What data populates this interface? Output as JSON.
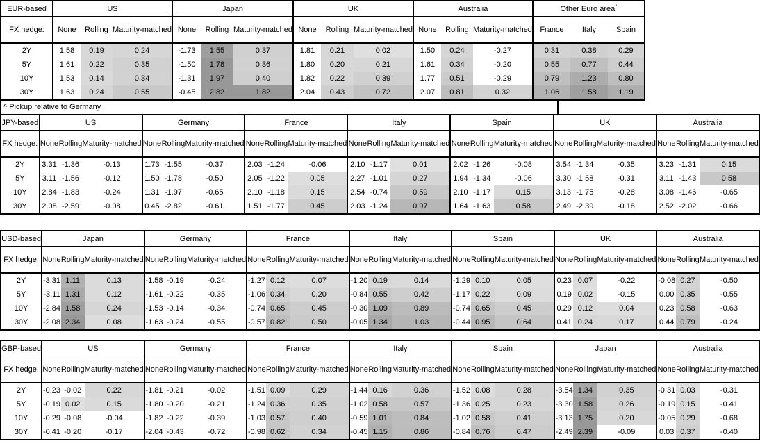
{
  "footnote": "^ Pickup relative to Germany",
  "fx_hedge_label": "FX hedge:",
  "row_labels": [
    "2Y",
    "5Y",
    "10Y",
    "30Y"
  ],
  "standard_subcols": [
    "None",
    "Rolling",
    "Maturity-matched"
  ],
  "colors": {
    "border": "#000000",
    "shade_lightest": "#dedede",
    "shade_darkest": "#989898",
    "background": "#ffffff"
  },
  "shading_rule": "positive values in hedged (Rolling / Maturity-matched) columns and in all Other-Euro-area pickup columns are shaded grey, darker with larger value; None columns and negative values are unshaded",
  "tables": [
    {
      "base_label": "EUR-based",
      "groups": [
        {
          "name": "US",
          "cols": [
            "None",
            "Rolling",
            "Maturity-matched"
          ],
          "shade_all": false,
          "rows": [
            [
              "1.58",
              "0.19",
              "0.24"
            ],
            [
              "1.61",
              "0.22",
              "0.35"
            ],
            [
              "1.53",
              "0.14",
              "0.34"
            ],
            [
              "1.63",
              "0.24",
              "0.55"
            ]
          ]
        },
        {
          "name": "Japan",
          "cols": [
            "None",
            "Rolling",
            "Maturity-matched"
          ],
          "shade_all": false,
          "rows": [
            [
              "-1.73",
              "1.55",
              "0.37"
            ],
            [
              "-1.50",
              "1.78",
              "0.36"
            ],
            [
              "-1.31",
              "1.97",
              "0.40"
            ],
            [
              "-0.45",
              "2.82",
              "1.82"
            ]
          ]
        },
        {
          "name": "UK",
          "cols": [
            "None",
            "Rolling",
            "Maturity-matched"
          ],
          "shade_all": false,
          "rows": [
            [
              "1.81",
              "0.21",
              "0.02"
            ],
            [
              "1.80",
              "0.20",
              "0.21"
            ],
            [
              "1.82",
              "0.22",
              "0.39"
            ],
            [
              "2.04",
              "0.43",
              "0.72"
            ]
          ]
        },
        {
          "name": "Australia",
          "cols": [
            "None",
            "Rolling",
            "Maturity-matched"
          ],
          "shade_all": false,
          "rows": [
            [
              "1.50",
              "0.24",
              "-0.27"
            ],
            [
              "1.61",
              "0.34",
              "-0.20"
            ],
            [
              "1.77",
              "0.51",
              "-0.29"
            ],
            [
              "2.07",
              "0.81",
              "0.32"
            ]
          ]
        },
        {
          "name": "Other Euro area",
          "sup": "^",
          "cols": [
            "France",
            "Italy",
            "Spain"
          ],
          "shade_all": true,
          "rows": [
            [
              "0.31",
              "0.38",
              "0.29"
            ],
            [
              "0.55",
              "0.77",
              "0.44"
            ],
            [
              "0.79",
              "1.23",
              "0.80"
            ],
            [
              "1.06",
              "1.58",
              "1.19"
            ]
          ]
        }
      ]
    },
    {
      "base_label": "JPY-based",
      "groups": [
        {
          "name": "US",
          "cols": [
            "None",
            "Rolling",
            "Maturity-matched"
          ],
          "shade_all": false,
          "rows": [
            [
              "3.31",
              "-1.36",
              "-0.13"
            ],
            [
              "3.11",
              "-1.56",
              "-0.12"
            ],
            [
              "2.84",
              "-1.83",
              "-0.24"
            ],
            [
              "2.08",
              "-2.59",
              "-0.08"
            ]
          ]
        },
        {
          "name": "Germany",
          "cols": [
            "None",
            "Rolling",
            "Maturity-matched"
          ],
          "shade_all": false,
          "rows": [
            [
              "1.73",
              "-1.55",
              "-0.37"
            ],
            [
              "1.50",
              "-1.78",
              "-0.50"
            ],
            [
              "1.31",
              "-1.97",
              "-0.65"
            ],
            [
              "0.45",
              "-2.82",
              "-0.61"
            ]
          ]
        },
        {
          "name": "France",
          "cols": [
            "None",
            "Rolling",
            "Maturity-matched"
          ],
          "shade_all": false,
          "rows": [
            [
              "2.03",
              "-1.24",
              "-0.06"
            ],
            [
              "2.05",
              "-1.22",
              "0.05"
            ],
            [
              "2.10",
              "-1.18",
              "0.15"
            ],
            [
              "1.51",
              "-1.77",
              "0.45"
            ]
          ]
        },
        {
          "name": "Italy",
          "cols": [
            "None",
            "Rolling",
            "Maturity-matched"
          ],
          "shade_all": false,
          "rows": [
            [
              "2.10",
              "-1.17",
              "0.01"
            ],
            [
              "2.27",
              "-1.01",
              "0.27"
            ],
            [
              "2.54",
              "-0.74",
              "0.59"
            ],
            [
              "2.03",
              "-1.24",
              "0.97"
            ]
          ]
        },
        {
          "name": "Spain",
          "cols": [
            "None",
            "Rolling",
            "Maturity-matched"
          ],
          "shade_all": false,
          "rows": [
            [
              "2.02",
              "-1.26",
              "-0.08"
            ],
            [
              "1.94",
              "-1.34",
              "-0.06"
            ],
            [
              "2.10",
              "-1.17",
              "0.15"
            ],
            [
              "1.64",
              "-1.63",
              "0.58"
            ]
          ]
        },
        {
          "name": "UK",
          "cols": [
            "None",
            "Rolling",
            "Maturity-matched"
          ],
          "shade_all": false,
          "rows": [
            [
              "3.54",
              "-1.34",
              "-0.35"
            ],
            [
              "3.30",
              "-1.58",
              "-0.31"
            ],
            [
              "3.13",
              "-1.75",
              "-0.28"
            ],
            [
              "2.49",
              "-2.39",
              "-0.18"
            ]
          ]
        },
        {
          "name": "Australia",
          "cols": [
            "None",
            "Rolling",
            "Maturity-matched"
          ],
          "shade_all": false,
          "rows": [
            [
              "3.23",
              "-1.31",
              "0.15"
            ],
            [
              "3.11",
              "-1.43",
              "0.58"
            ],
            [
              "3.08",
              "-1.46",
              "-0.65"
            ],
            [
              "2.52",
              "-2.02",
              "-0.66"
            ]
          ]
        }
      ]
    },
    {
      "base_label": "USD-based",
      "groups": [
        {
          "name": "Japan",
          "cols": [
            "None",
            "Rolling",
            "Maturity-matched"
          ],
          "shade_all": false,
          "rows": [
            [
              "-3.31",
              "1.11",
              "0.13"
            ],
            [
              "-3.11",
              "1.31",
              "0.12"
            ],
            [
              "-2.84",
              "1.58",
              "0.24"
            ],
            [
              "-2.08",
              "2.34",
              "0.08"
            ]
          ]
        },
        {
          "name": "Germany",
          "cols": [
            "None",
            "Rolling",
            "Maturity-matched"
          ],
          "shade_all": false,
          "rows": [
            [
              "-1.58",
              "-0.19",
              "-0.24"
            ],
            [
              "-1.61",
              "-0.22",
              "-0.35"
            ],
            [
              "-1.53",
              "-0.14",
              "-0.34"
            ],
            [
              "-1.63",
              "-0.24",
              "-0.55"
            ]
          ]
        },
        {
          "name": "France",
          "cols": [
            "None",
            "Rolling",
            "Maturity-matched"
          ],
          "shade_all": false,
          "rows": [
            [
              "-1.27",
              "0.12",
              "0.07"
            ],
            [
              "-1.06",
              "0.34",
              "0.20"
            ],
            [
              "-0.74",
              "0.65",
              "0.45"
            ],
            [
              "-0.57",
              "0.82",
              "0.50"
            ]
          ]
        },
        {
          "name": "Italy",
          "cols": [
            "None",
            "Rolling",
            "Maturity-matched"
          ],
          "shade_all": false,
          "rows": [
            [
              "-1.20",
              "0.19",
              "0.14"
            ],
            [
              "-0.84",
              "0.55",
              "0.42"
            ],
            [
              "-0.30",
              "1.09",
              "0.89"
            ],
            [
              "-0.05",
              "1.34",
              "1.03"
            ]
          ]
        },
        {
          "name": "Spain",
          "cols": [
            "None",
            "Rolling",
            "Maturity-matched"
          ],
          "shade_all": false,
          "rows": [
            [
              "-1.29",
              "0.10",
              "0.05"
            ],
            [
              "-1.17",
              "0.22",
              "0.09"
            ],
            [
              "-0.74",
              "0.65",
              "0.45"
            ],
            [
              "-0.44",
              "0.95",
              "0.64"
            ]
          ]
        },
        {
          "name": "UK",
          "cols": [
            "None",
            "Rolling",
            "Maturity-matched"
          ],
          "shade_all": false,
          "rows": [
            [
              "0.23",
              "0.07",
              "-0.22"
            ],
            [
              "0.19",
              "0.02",
              "-0.15"
            ],
            [
              "0.29",
              "0.12",
              "0.04"
            ],
            [
              "0.41",
              "0.24",
              "0.17"
            ]
          ]
        },
        {
          "name": "Australia",
          "cols": [
            "None",
            "Rolling",
            "Maturity-matched"
          ],
          "shade_all": false,
          "rows": [
            [
              "-0.08",
              "0.27",
              "-0.50"
            ],
            [
              "0.00",
              "0.35",
              "-0.55"
            ],
            [
              "0.23",
              "0.58",
              "-0.63"
            ],
            [
              "0.44",
              "0.79",
              "-0.24"
            ]
          ]
        }
      ]
    },
    {
      "base_label": "GBP-based",
      "groups": [
        {
          "name": "US",
          "cols": [
            "None",
            "Rolling",
            "Maturity-matched"
          ],
          "shade_all": false,
          "rows": [
            [
              "-0.23",
              "-0.02",
              "0.22"
            ],
            [
              "-0.19",
              "0.02",
              "0.15"
            ],
            [
              "-0.29",
              "-0.08",
              "-0.04"
            ],
            [
              "-0.41",
              "-0.20",
              "-0.17"
            ]
          ]
        },
        {
          "name": "Germany",
          "cols": [
            "None",
            "Rolling",
            "Maturity-matched"
          ],
          "shade_all": false,
          "rows": [
            [
              "-1.81",
              "-0.21",
              "-0.02"
            ],
            [
              "-1.80",
              "-0.20",
              "-0.21"
            ],
            [
              "-1.82",
              "-0.22",
              "-0.39"
            ],
            [
              "-2.04",
              "-0.43",
              "-0.72"
            ]
          ]
        },
        {
          "name": "France",
          "cols": [
            "None",
            "Rolling",
            "Maturity-matched"
          ],
          "shade_all": false,
          "rows": [
            [
              "-1.51",
              "0.09",
              "0.29"
            ],
            [
              "-1.24",
              "0.36",
              "0.35"
            ],
            [
              "-1.03",
              "0.57",
              "0.40"
            ],
            [
              "-0.98",
              "0.62",
              "0.34"
            ]
          ]
        },
        {
          "name": "Italy",
          "cols": [
            "None",
            "Rolling",
            "Maturity-matched"
          ],
          "shade_all": false,
          "rows": [
            [
              "-1.44",
              "0.16",
              "0.36"
            ],
            [
              "-1.02",
              "0.58",
              "0.57"
            ],
            [
              "-0.59",
              "1.01",
              "0.84"
            ],
            [
              "-0.45",
              "1.15",
              "0.86"
            ]
          ]
        },
        {
          "name": "Spain",
          "cols": [
            "None",
            "Rolling",
            "Maturity-matched"
          ],
          "shade_all": false,
          "rows": [
            [
              "-1.52",
              "0.08",
              "0.28"
            ],
            [
              "-1.36",
              "0.25",
              "0.23"
            ],
            [
              "-1.02",
              "0.58",
              "0.41"
            ],
            [
              "-0.84",
              "0.76",
              "0.47"
            ]
          ]
        },
        {
          "name": "Japan",
          "cols": [
            "None",
            "Rolling",
            "Maturity-matched"
          ],
          "shade_all": false,
          "rows": [
            [
              "-3.54",
              "1.34",
              "0.35"
            ],
            [
              "-3.30",
              "1.58",
              "0.26"
            ],
            [
              "-3.13",
              "1.75",
              "0.20"
            ],
            [
              "-2.49",
              "2.39",
              "-0.09"
            ]
          ]
        },
        {
          "name": "Australia",
          "cols": [
            "None",
            "Rolling",
            "Maturity-matched"
          ],
          "shade_all": false,
          "rows": [
            [
              "-0.31",
              "0.03",
              "-0.31"
            ],
            [
              "-0.19",
              "0.15",
              "-0.41"
            ],
            [
              "-0.05",
              "0.29",
              "-0.68"
            ],
            [
              "0.03",
              "0.37",
              "-0.40"
            ]
          ]
        }
      ]
    }
  ]
}
